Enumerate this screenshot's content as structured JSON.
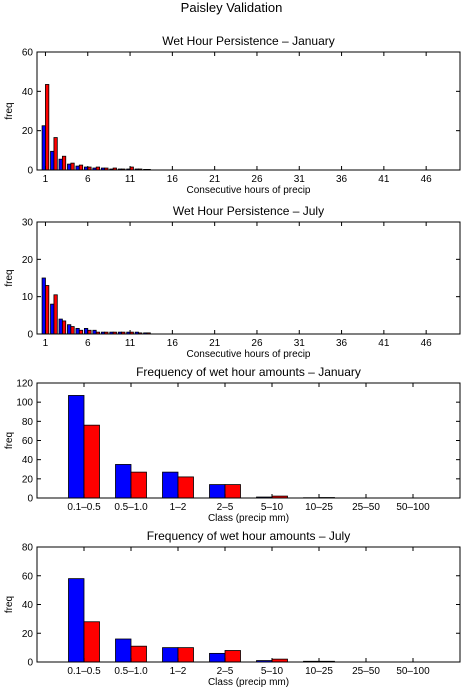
{
  "figure_title": "Paisley Validation",
  "colors": {
    "series_a": "#0000ff",
    "series_b": "#ff0000"
  },
  "chart_data": [
    {
      "type": "bar",
      "title": "Wet Hour Persistence – January",
      "xlabel": "Consecutive hours of precip",
      "ylabel": "freq",
      "xlim": [
        0,
        50
      ],
      "ylim": [
        0,
        60
      ],
      "xticks": [
        1,
        6,
        11,
        16,
        21,
        26,
        31,
        36,
        41,
        46
      ],
      "yticks": [
        0,
        20,
        40,
        60
      ],
      "x": [
        1,
        2,
        3,
        4,
        5,
        6,
        7,
        8,
        9,
        10,
        11,
        12,
        13
      ],
      "series": [
        {
          "values": [
            22.5,
            9.5,
            5.5,
            3,
            2,
            1.5,
            1,
            1,
            0.5,
            0.5,
            0.5,
            0.5,
            0.3
          ]
        },
        {
          "values": [
            43.5,
            16.5,
            7,
            3.5,
            2.5,
            1.5,
            1.5,
            1,
            1,
            0.5,
            1.5,
            0.5,
            0.3
          ]
        }
      ]
    },
    {
      "type": "bar",
      "title": "Wet Hour Persistence – July",
      "xlabel": "Consecutive hours of precip",
      "ylabel": "freq",
      "xlim": [
        0,
        50
      ],
      "ylim": [
        0,
        30
      ],
      "xticks": [
        1,
        6,
        11,
        16,
        21,
        26,
        31,
        36,
        41,
        46
      ],
      "yticks": [
        0,
        10,
        20,
        30
      ],
      "x": [
        1,
        2,
        3,
        4,
        5,
        6,
        7,
        8,
        9,
        10,
        11,
        12,
        13
      ],
      "series": [
        {
          "values": [
            15,
            8,
            4,
            2.5,
            1.5,
            1.5,
            1,
            0.5,
            0.5,
            0.5,
            0.5,
            0.5,
            0.3
          ]
        },
        {
          "values": [
            13,
            10.5,
            3.5,
            2,
            1,
            1,
            0.5,
            0.5,
            0.5,
            0.5,
            0.5,
            0.3,
            0.3
          ]
        }
      ]
    },
    {
      "type": "bar",
      "title": "Frequency of wet hour amounts – January",
      "xlabel": "Class (precip mm)",
      "ylabel": "freq",
      "ylim": [
        0,
        120
      ],
      "yticks": [
        0,
        20,
        40,
        60,
        80,
        100,
        120
      ],
      "categories": [
        "0.1–0.5",
        "0.5–1.0",
        "1–2",
        "2–5",
        "5–10",
        "10–25",
        "25–50",
        "50–100"
      ],
      "series": [
        {
          "values": [
            107,
            35,
            27,
            14,
            1,
            0.3,
            0,
            0
          ]
        },
        {
          "values": [
            76,
            27,
            22,
            14,
            2,
            0.5,
            0,
            0
          ]
        }
      ]
    },
    {
      "type": "bar",
      "title": "Frequency of wet hour amounts – July",
      "xlabel": "Class (precip mm)",
      "ylabel": "freq",
      "ylim": [
        0,
        80
      ],
      "yticks": [
        0,
        20,
        40,
        60,
        80
      ],
      "categories": [
        "0.1–0.5",
        "0.5–1.0",
        "1–2",
        "2–5",
        "5–10",
        "10–25",
        "25–50",
        "50–100"
      ],
      "series": [
        {
          "values": [
            58,
            16,
            10,
            6,
            1,
            0.5,
            0,
            0
          ]
        },
        {
          "values": [
            28,
            11,
            10,
            8,
            2,
            0.5,
            0,
            0
          ]
        }
      ]
    }
  ]
}
